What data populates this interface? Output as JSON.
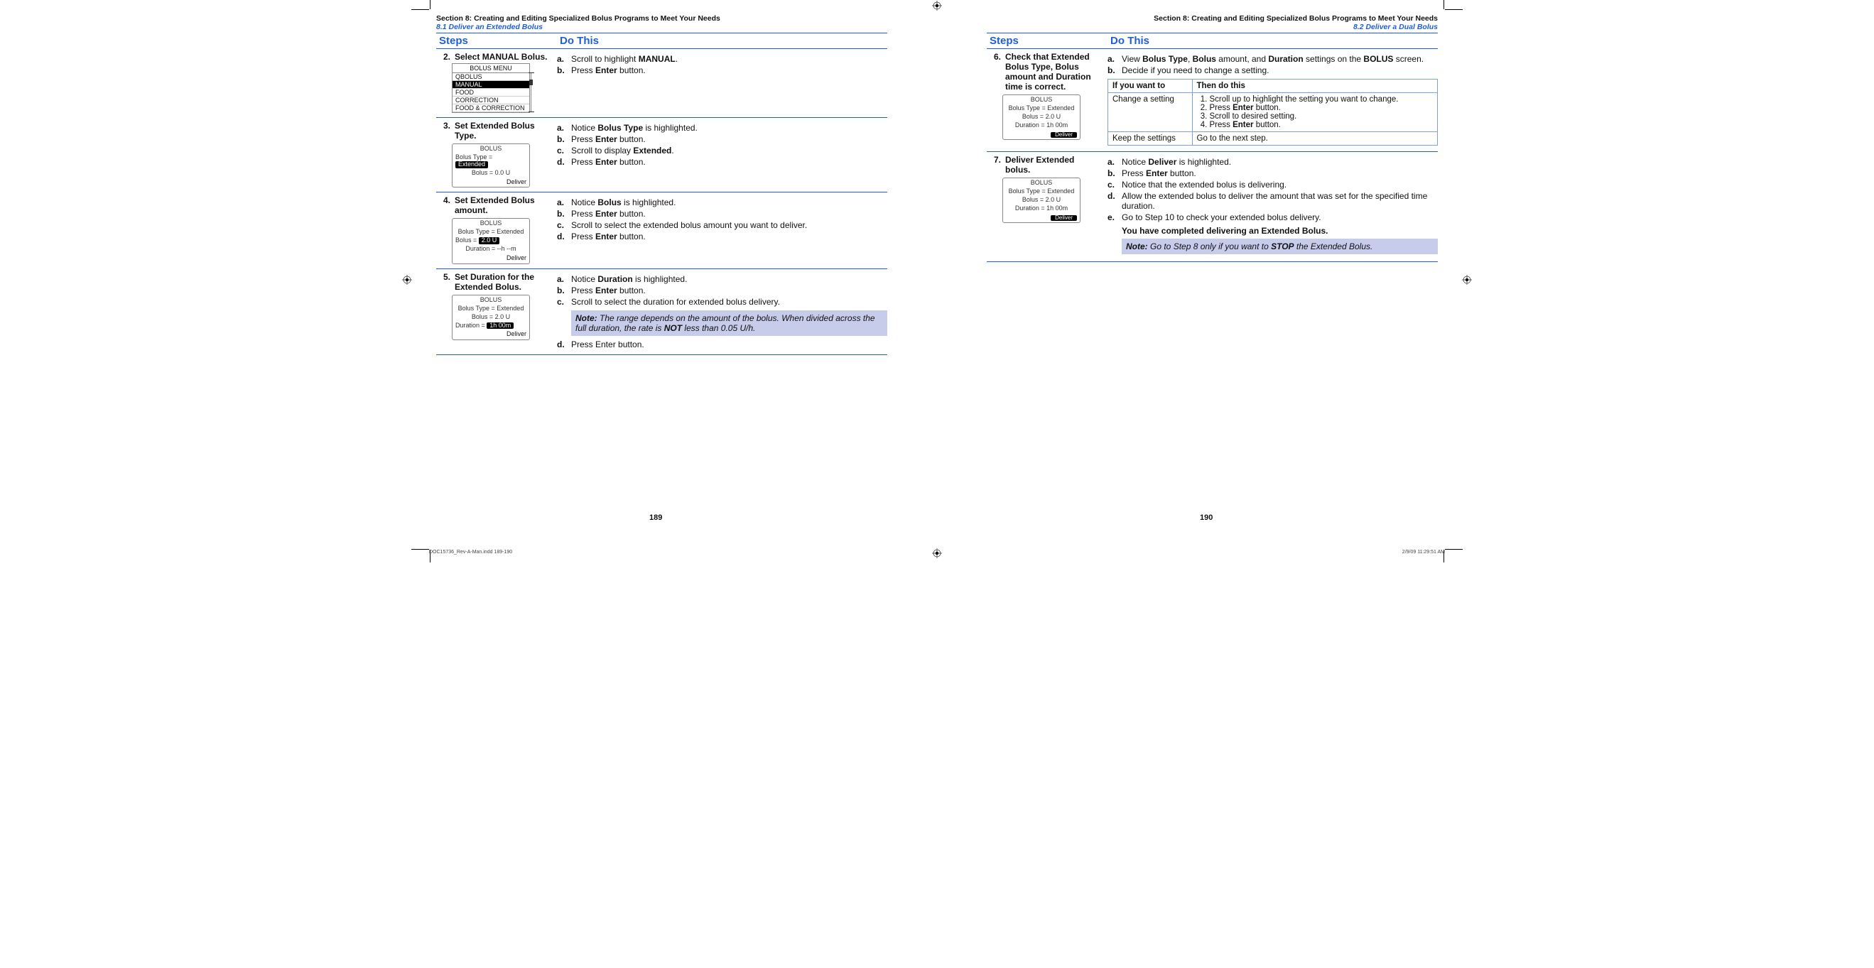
{
  "meta": {
    "section_title": "Section 8: Creating and Editing Specialized Bolus Programs to Meet Your Needs",
    "left_subsection": "8.1 Deliver an Extended Bolus",
    "right_subsection": "8.2 Deliver a Dual Bolus",
    "col_steps": "Steps",
    "col_do": "Do This",
    "page_left": "189",
    "page_right": "190",
    "slug_left": "DOC15736_Rev-A-Man.indd   189-190",
    "slug_right": "2/9/09   11:29:51 AM"
  },
  "colors": {
    "accent": "#1f5fd0",
    "note_bg": "#c7ccea",
    "inner_border": "#7da0d8"
  },
  "left_steps": [
    {
      "num": "2.",
      "title_parts": [
        "Select ",
        "MANUAL Bolus."
      ],
      "screen": {
        "kind": "menu",
        "title": "BOLUS MENU",
        "items": [
          "QBOLUS",
          "MANUAL",
          "FOOD",
          "CORRECTION",
          "FOOD & CORRECTION"
        ],
        "selected": 1
      },
      "do": [
        {
          "m": "a.",
          "t": "Scroll to highlight <b>MANUAL</b>."
        },
        {
          "m": "b.",
          "t": "Press <b>Enter</b> button."
        }
      ]
    },
    {
      "num": "3.",
      "title_parts": [
        "Set Extended Bolus Type."
      ],
      "screen": {
        "kind": "bolus",
        "title": "BOLUS",
        "lines": [
          {
            "label": "Bolus Type =",
            "pill": "Extended"
          },
          {
            "center": "Bolus = 0.0 U"
          }
        ],
        "footer": "Deliver"
      },
      "do": [
        {
          "m": "a.",
          "t": "Notice <b>Bolus Type</b> is highlighted."
        },
        {
          "m": "b.",
          "t": "Press <b>Enter</b> button."
        },
        {
          "m": "c.",
          "t": "Scroll to display <b>Extended</b>."
        },
        {
          "m": "d.",
          "t": "Press <b>Enter</b> button."
        }
      ]
    },
    {
      "num": "4.",
      "title_parts": [
        "Set Extended Bolus amount."
      ],
      "screen": {
        "kind": "bolus",
        "title": "BOLUS",
        "lines": [
          {
            "center": "Bolus Type = Extended"
          },
          {
            "label": "Bolus =",
            "pill": "2.0 U"
          },
          {
            "center": "Duration = --h --m"
          }
        ],
        "footer": "Deliver"
      },
      "do": [
        {
          "m": "a.",
          "t": "Notice <b>Bolus</b> is highlighted."
        },
        {
          "m": "b.",
          "t": "Press <b>Enter</b> button."
        },
        {
          "m": "c.",
          "t": "Scroll to select the extended bolus amount you want to deliver."
        },
        {
          "m": "d.",
          "t": "Press <b>Enter</b> button."
        }
      ]
    },
    {
      "num": "5.",
      "title_parts": [
        "Set Duration for the Extended Bolus."
      ],
      "screen": {
        "kind": "bolus",
        "title": "BOLUS",
        "lines": [
          {
            "center": "Bolus Type = Extended"
          },
          {
            "center": "Bolus = 2.0 U"
          },
          {
            "label": "Duration =",
            "pill": "1h 00m"
          }
        ],
        "footer": "Deliver"
      },
      "do_pre": [
        {
          "m": "a.",
          "t": "Notice <b>Duration</b> is highlighted."
        },
        {
          "m": "b.",
          "t": "Press <b>Enter</b> button."
        },
        {
          "m": "c.",
          "t": "Scroll to select the duration for extended bolus delivery."
        }
      ],
      "note": {
        "label": "Note:",
        "text": " The range depends on the amount of the bolus. When divided across the full duration, the rate is <b class='nbold'>NOT</b> less than 0.05 U/h."
      },
      "do_post": [
        {
          "m": "d.",
          "t": "Press Enter button."
        }
      ]
    }
  ],
  "right_steps": [
    {
      "num": "6.",
      "title_parts": [
        "Check that Extended Bolus Type, Bolus amount and Duration time is correct."
      ],
      "screen": {
        "kind": "bolus",
        "title": "BOLUS",
        "lines": [
          {
            "center": "Bolus Type = Extended"
          },
          {
            "center": "Bolus = 2.0 U"
          },
          {
            "center": "Duration = 1h 00m"
          }
        ],
        "footer_btn": "Deliver"
      },
      "do_pre": [
        {
          "m": "a.",
          "t": "View <b>Bolus Type</b>, <b>Bolus</b> amount, and <b>Duration</b> settings on the <b>BOLUS</b> screen."
        },
        {
          "m": "b.",
          "t": "Decide if you need to change a setting."
        }
      ],
      "table": {
        "head": [
          "If you want to",
          "Then do this"
        ],
        "rows": [
          {
            "a": "Change a setting",
            "b_list": [
              "Scroll up to highlight the setting you want to change.",
              "Press <b>Enter</b> button.",
              "Scroll to desired setting.",
              "Press <b>Enter</b> button."
            ]
          },
          {
            "a": "Keep the settings",
            "b": "Go to the next step."
          }
        ]
      }
    },
    {
      "num": "7.",
      "title_parts": [
        "Deliver Extended bolus."
      ],
      "screen": {
        "kind": "bolus",
        "title": "BOLUS",
        "lines": [
          {
            "center": "Bolus Type = Extended"
          },
          {
            "center": "Bolus = 2.0 U"
          },
          {
            "center": "Duration = 1h 00m"
          }
        ],
        "footer_btn": "Deliver"
      },
      "do": [
        {
          "m": "a.",
          "t": "Notice <b>Deliver</b> is highlighted."
        },
        {
          "m": "b.",
          "t": "Press <b>Enter</b> button."
        },
        {
          "m": "c.",
          "t": "Notice that the extended bolus is delivering."
        },
        {
          "m": "d.",
          "t": "Allow the extended bolus to deliver the amount that was set for the specified time duration."
        },
        {
          "m": "e.",
          "t": "Go to Step 10 to check your extended bolus delivery."
        }
      ],
      "completion": "You have completed delivering an Extended Bolus.",
      "note": {
        "label": "Note:",
        "text": " Go to Step 8 only if you want to <b class='nbold'>STOP</b> the Extended Bolus."
      }
    }
  ]
}
